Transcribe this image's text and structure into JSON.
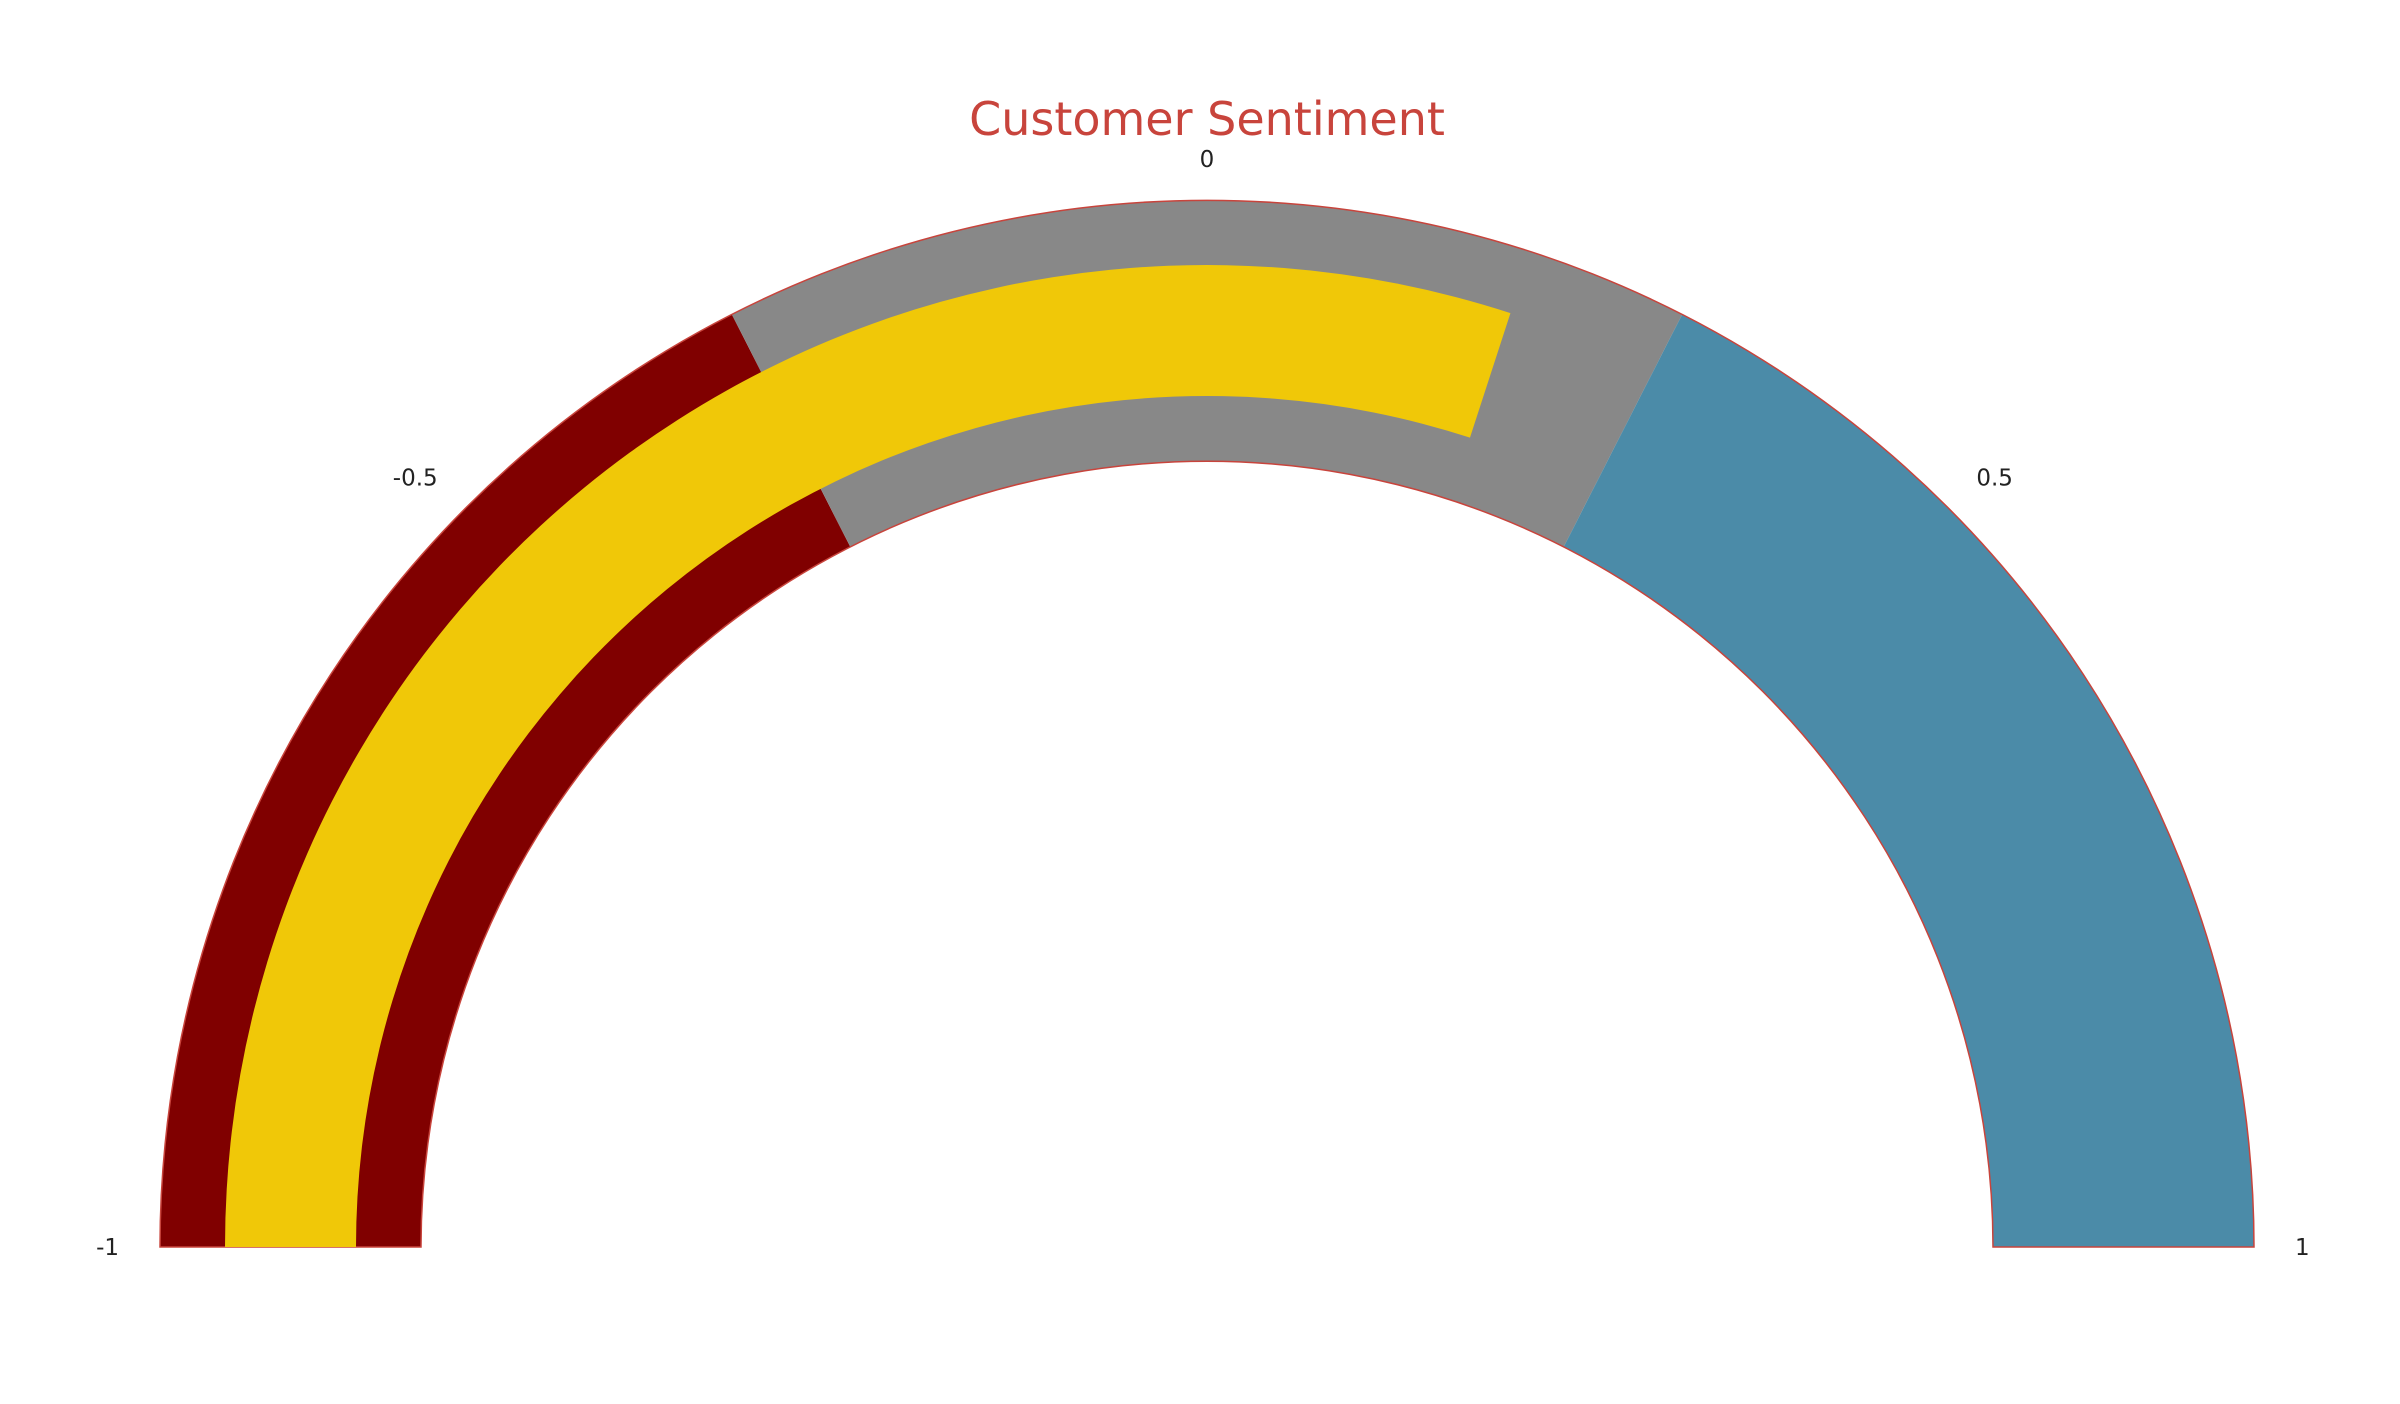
{
  "chart_data": {
    "type": "gauge",
    "title": "Customer Sentiment",
    "value": 0.2,
    "range": [
      -1,
      1
    ],
    "tick_values": [
      -1,
      -0.5,
      0,
      0.5,
      1
    ],
    "tick_labels": [
      "-1",
      "-0.5",
      "0",
      "0.5",
      "1"
    ],
    "steps": [
      {
        "range": [
          -1,
          -0.3
        ],
        "color": "#800000"
      },
      {
        "range": [
          -0.3,
          0.3
        ],
        "color": "#888888"
      },
      {
        "range": [
          0.3,
          1
        ],
        "color": "#4b8ba8"
      }
    ],
    "bar_color": "#f0c808",
    "border_color": "#c8443c",
    "title_color": "#c8443c"
  }
}
